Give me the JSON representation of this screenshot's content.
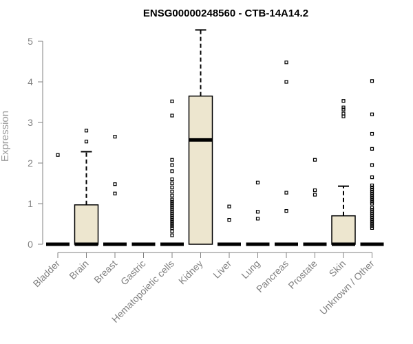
{
  "chart_data": {
    "type": "box",
    "title": "ENSG00000248560 - CTB-14A14.2",
    "ylabel": "Expression",
    "ylim": [
      0,
      5.2
    ],
    "yticks": [
      0,
      1,
      2,
      3,
      4,
      5
    ],
    "categories": [
      "Bladder",
      "Brain",
      "Breast",
      "Gastric",
      "Hematopoietic cells",
      "Kidney",
      "Liver",
      "Lung",
      "Pancreas",
      "Prostate",
      "Skin",
      "Unknown / Other"
    ],
    "boxes": [
      {
        "min": 0,
        "q1": 0,
        "median": 0,
        "q3": 0,
        "max": 0,
        "outliers": [
          2.2
        ]
      },
      {
        "min": 0,
        "q1": 0,
        "median": 0,
        "q3": 0.97,
        "max": 2.28,
        "outliers": [
          2.53,
          2.8
        ]
      },
      {
        "min": 0,
        "q1": 0,
        "median": 0,
        "q3": 0,
        "max": 0,
        "outliers": [
          1.25,
          1.48,
          2.65
        ]
      },
      {
        "min": 0,
        "q1": 0,
        "median": 0,
        "q3": 0,
        "max": 0,
        "outliers": []
      },
      {
        "min": 0,
        "q1": 0,
        "median": 0,
        "q3": 0,
        "max": 0,
        "outliers": [
          0.22,
          0.32,
          0.4,
          0.45,
          0.5,
          0.55,
          0.6,
          0.65,
          0.7,
          0.75,
          0.8,
          0.85,
          0.9,
          0.95,
          1.0,
          1.05,
          1.1,
          1.2,
          1.3,
          1.4,
          1.5,
          1.6,
          1.8,
          1.95,
          2.08,
          3.17,
          3.52
        ]
      },
      {
        "min": 0,
        "q1": 0,
        "median": 2.57,
        "q3": 3.65,
        "max": 5.28,
        "outliers": []
      },
      {
        "min": 0,
        "q1": 0,
        "median": 0,
        "q3": 0,
        "max": 0,
        "outliers": [
          0.6,
          0.93
        ]
      },
      {
        "min": 0,
        "q1": 0,
        "median": 0,
        "q3": 0,
        "max": 0,
        "outliers": [
          0.63,
          0.8,
          1.52
        ]
      },
      {
        "min": 0,
        "q1": 0,
        "median": 0,
        "q3": 0,
        "max": 0,
        "outliers": [
          0.82,
          1.27,
          4.0,
          4.48
        ]
      },
      {
        "min": 0,
        "q1": 0,
        "median": 0,
        "q3": 0,
        "max": 0,
        "outliers": [
          1.22,
          1.33,
          2.08
        ]
      },
      {
        "min": 0,
        "q1": 0,
        "median": 0,
        "q3": 0.7,
        "max": 1.43,
        "outliers": [
          3.15,
          3.22,
          3.32,
          3.37,
          3.53
        ]
      },
      {
        "min": 0,
        "q1": 0,
        "median": 0,
        "q3": 0,
        "max": 0,
        "outliers": [
          0.4,
          0.45,
          0.5,
          0.55,
          0.6,
          0.65,
          0.7,
          0.75,
          0.8,
          0.85,
          0.9,
          1.0,
          1.05,
          1.1,
          1.15,
          1.2,
          1.25,
          1.3,
          1.35,
          1.4,
          1.45,
          1.65,
          1.95,
          2.35,
          2.72,
          3.2,
          4.02
        ]
      }
    ],
    "colors": {
      "box_fill": "#ede6cf",
      "axis": "#808080"
    }
  }
}
